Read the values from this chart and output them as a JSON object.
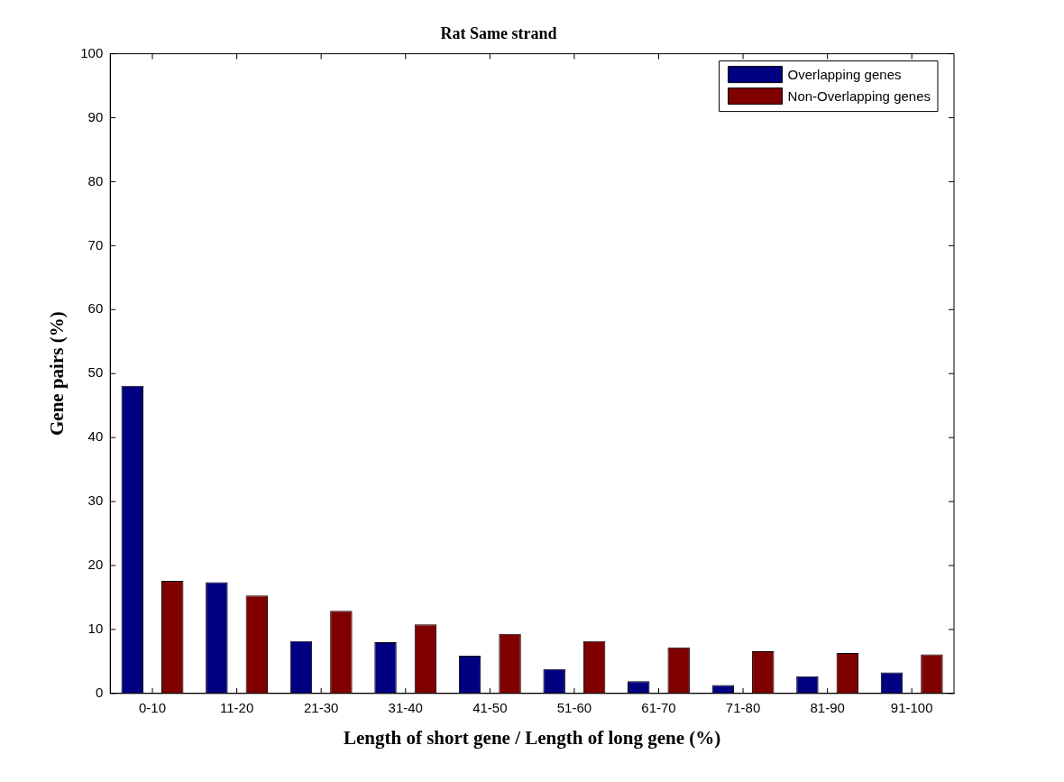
{
  "chart_data": {
    "type": "bar",
    "title": "Rat Same strand",
    "xlabel": "Length of short gene / Length of long gene (%)",
    "ylabel": "Gene pairs (%)",
    "categories": [
      "0-10",
      "11-20",
      "21-30",
      "31-40",
      "41-50",
      "51-60",
      "61-70",
      "71-80",
      "81-90",
      "91-100"
    ],
    "series": [
      {
        "name": "Overlapping genes",
        "color": "#000080",
        "values": [
          48.1,
          17.4,
          8.2,
          8.0,
          5.9,
          3.8,
          1.9,
          1.3,
          2.7,
          3.3
        ]
      },
      {
        "name": "Non-Overlapping genes",
        "color": "#800000",
        "values": [
          17.6,
          15.3,
          12.9,
          10.8,
          9.3,
          8.2,
          7.2,
          6.6,
          6.3,
          6.1
        ]
      }
    ],
    "ylim": [
      0,
      100
    ],
    "yticks": [
      0,
      10,
      20,
      30,
      40,
      50,
      60,
      70,
      80,
      90,
      100
    ],
    "grid": false,
    "legend": "top right"
  }
}
